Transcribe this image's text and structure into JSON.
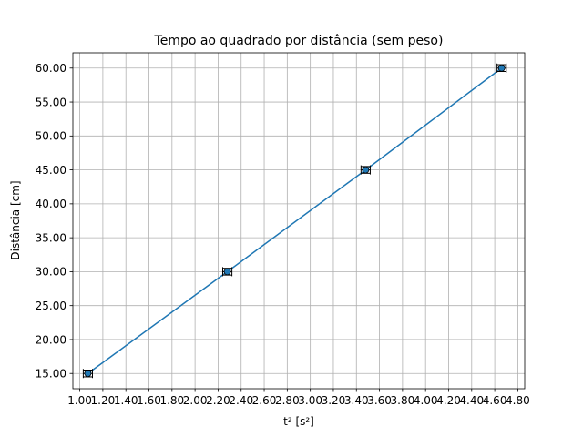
{
  "chart_data": {
    "type": "line",
    "title": "Tempo ao quadrado por distância (sem peso)",
    "xlabel": "t² [s²]",
    "ylabel": "Distância [cm]",
    "xlim": [
      0.94,
      4.86
    ],
    "ylim": [
      12.75,
      62.25
    ],
    "xticks": [
      1.0,
      1.2,
      1.4,
      1.6,
      1.8,
      2.0,
      2.2,
      2.4,
      2.6,
      2.8,
      3.0,
      3.2,
      3.4,
      3.6,
      3.8,
      4.0,
      4.2,
      4.4,
      4.6,
      4.8
    ],
    "yticks": [
      15.0,
      20.0,
      25.0,
      30.0,
      35.0,
      40.0,
      45.0,
      50.0,
      55.0,
      60.0
    ],
    "tick_decimals": 2,
    "grid": true,
    "series": [
      {
        "x": [
          1.07,
          2.28,
          3.48,
          4.66
        ],
        "y": [
          15.0,
          30.0,
          45.0,
          60.0
        ],
        "xerr": [
          0.04,
          0.04,
          0.04,
          0.04
        ],
        "yerr": [
          0.5,
          0.5,
          0.5,
          0.5
        ],
        "color": "#1f77b4",
        "marker": "circle"
      }
    ]
  }
}
